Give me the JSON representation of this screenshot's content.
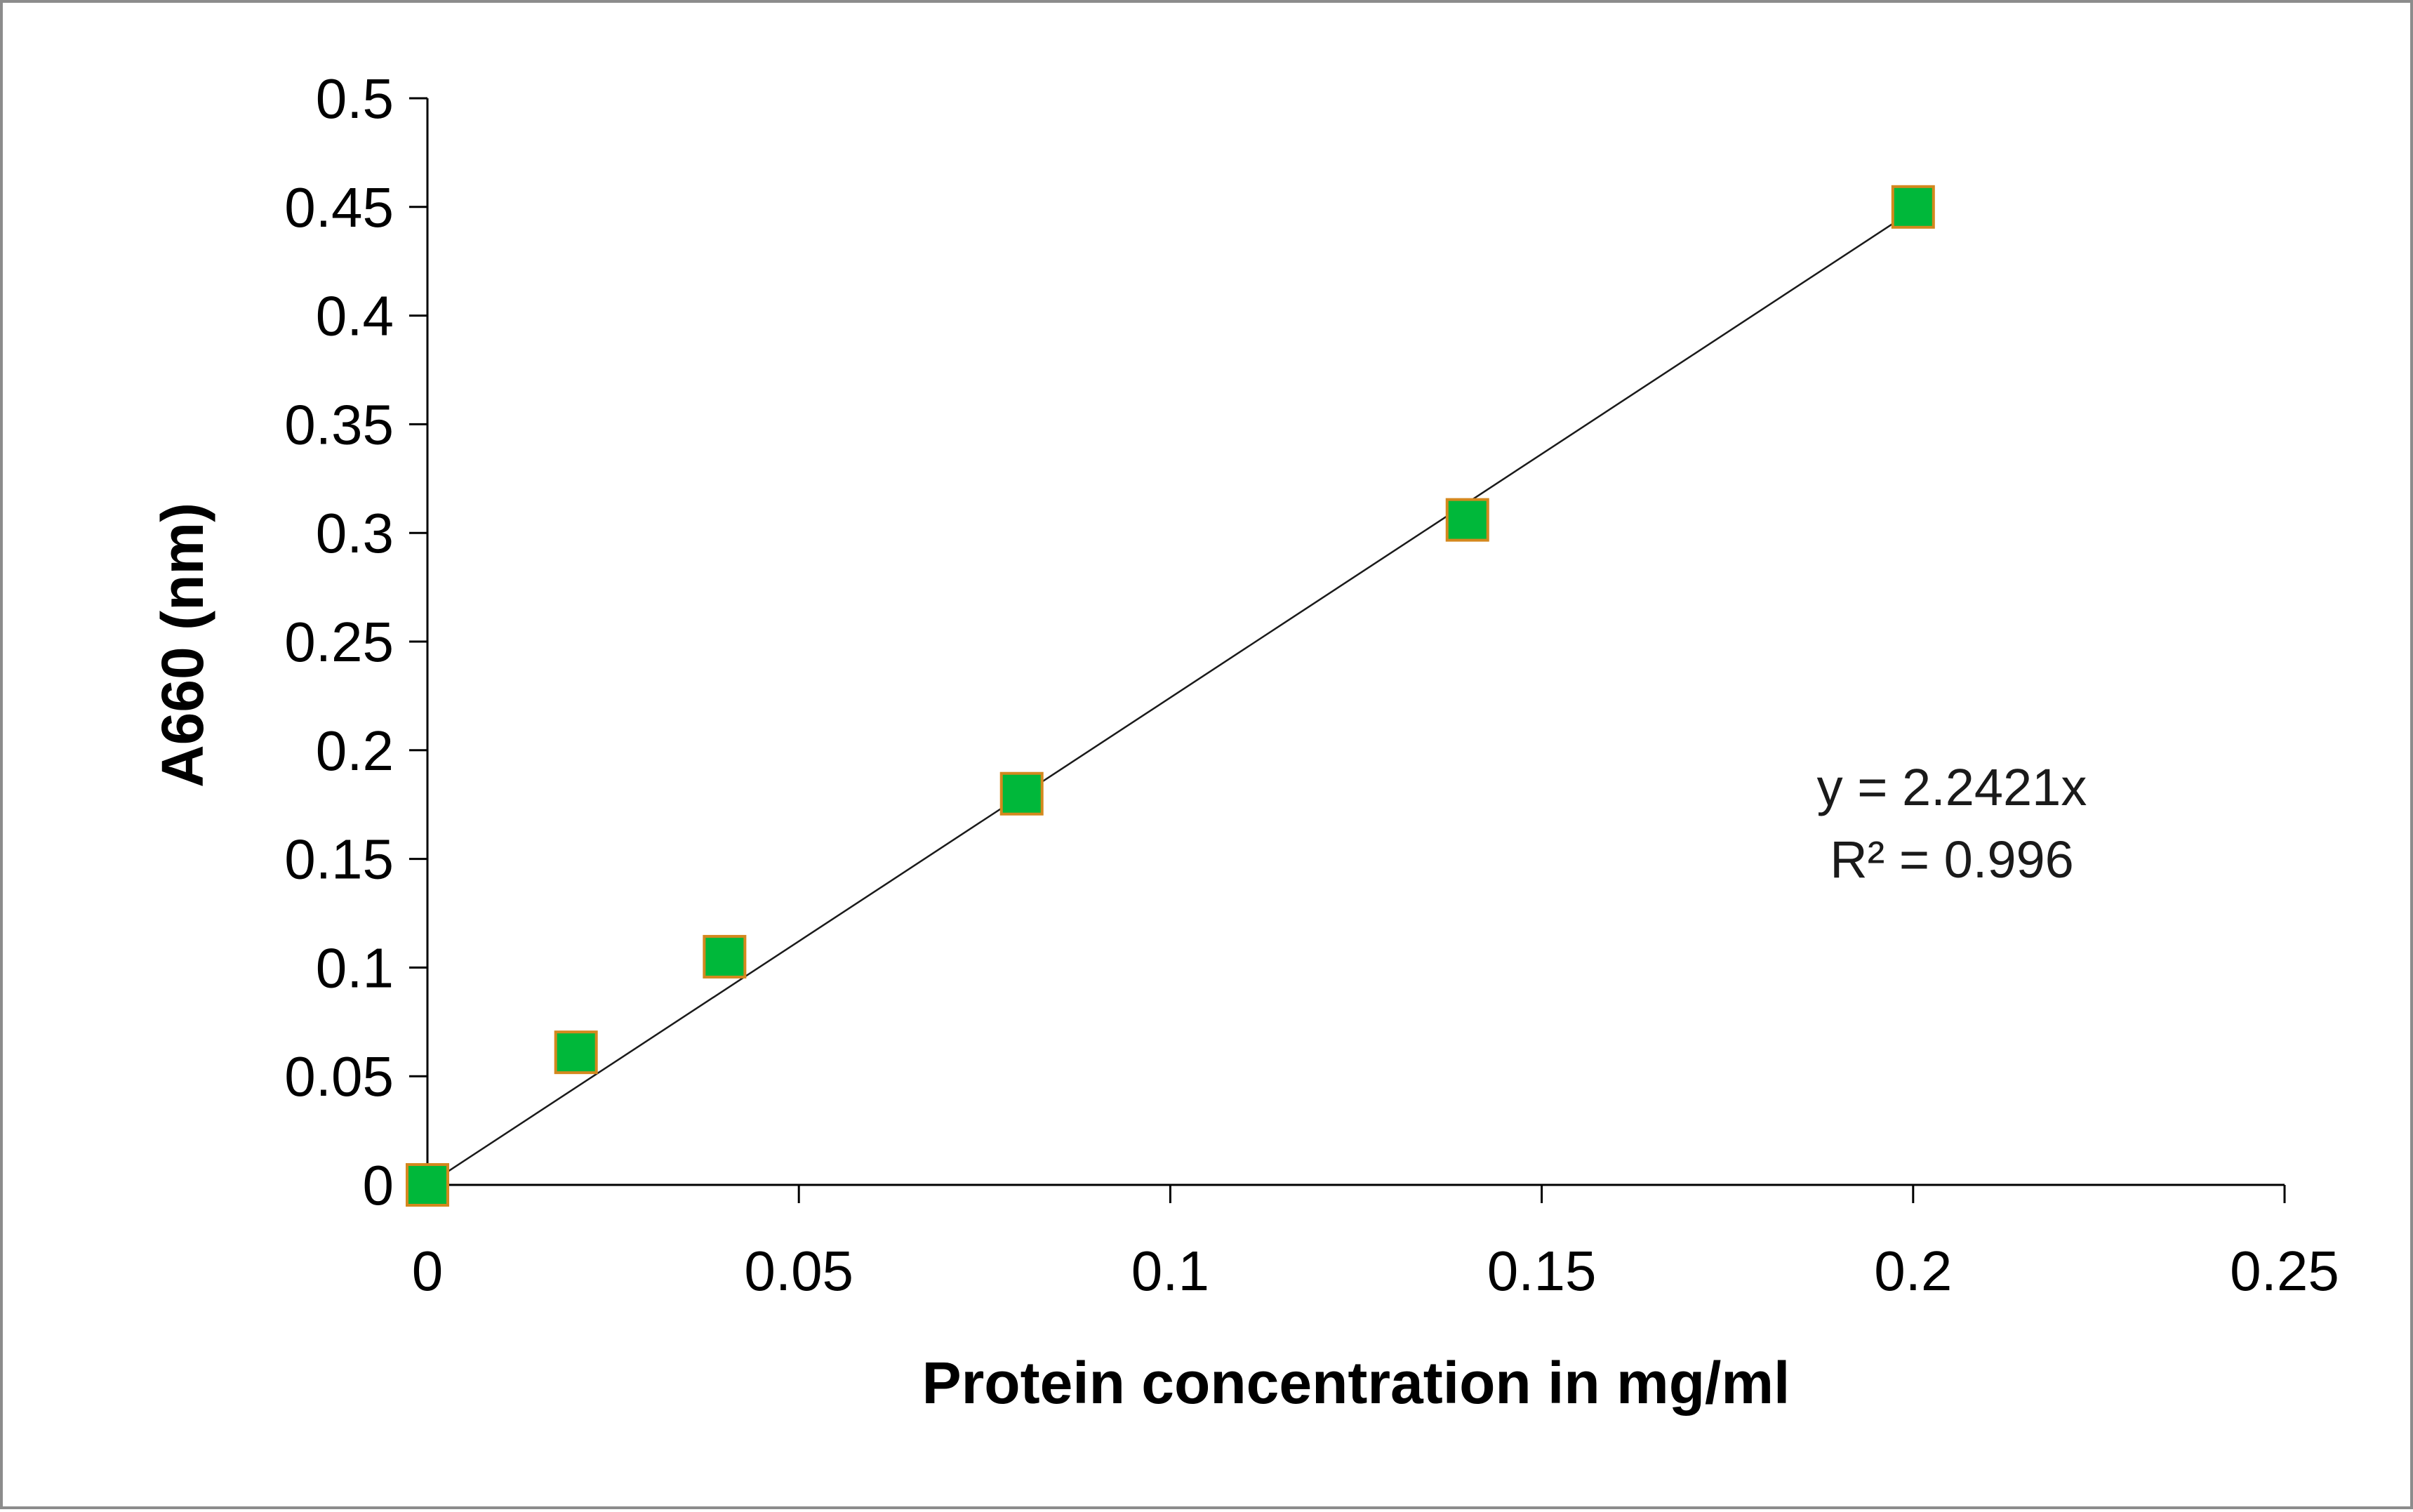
{
  "chart_data": {
    "type": "scatter",
    "xlabel": "Protein concentration  in  mg/ml",
    "ylabel": "A660  (nm)",
    "xlim": [
      0,
      0.25
    ],
    "ylim": [
      0,
      0.5
    ],
    "x_ticks": [
      0,
      0.05,
      0.1,
      0.15,
      0.2,
      0.25
    ],
    "x_tick_labels": [
      "0",
      "0.05",
      "0.1",
      "0.15",
      "0.2",
      "0.25"
    ],
    "y_ticks": [
      0,
      0.05,
      0.1,
      0.15,
      0.2,
      0.25,
      0.3,
      0.35,
      0.4,
      0.45,
      0.5
    ],
    "y_tick_labels": [
      "0",
      "0.05",
      "0.1",
      "0.15",
      "0.2",
      "0.25",
      "0.3",
      "0.35",
      "0.4",
      "0.45",
      "0.5"
    ],
    "grid": false,
    "legend": "none",
    "series": [
      {
        "x": [
          0,
          0.02,
          0.04,
          0.08,
          0.14,
          0.2
        ],
        "y": [
          0,
          0.061,
          0.105,
          0.18,
          0.306,
          0.45
        ],
        "marker": "square",
        "marker_fill": "#00b83a",
        "marker_edge": "#d4881e"
      }
    ],
    "trendline": {
      "type": "linear",
      "slope": 2.2421,
      "intercept": 0,
      "x_range": [
        0,
        0.2
      ],
      "color": "#1a1a1a"
    },
    "annotations": {
      "equation": "y = 2.2421x",
      "r_squared": "R² = 0.996"
    }
  }
}
